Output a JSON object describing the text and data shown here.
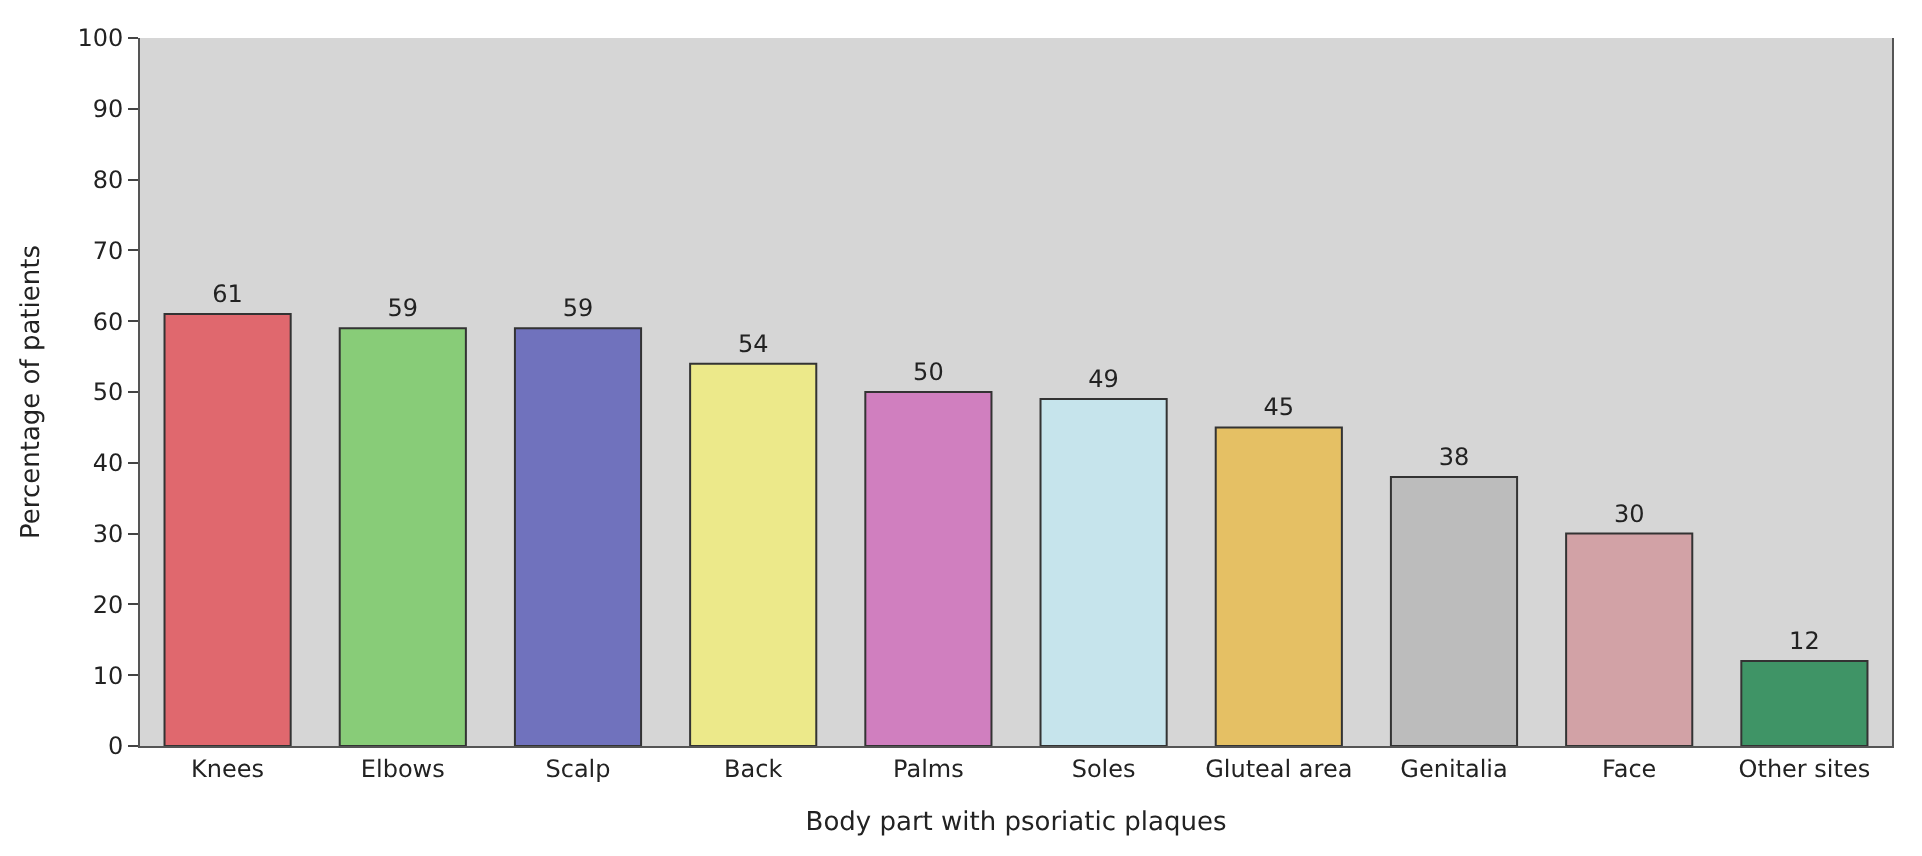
{
  "chart_data": {
    "type": "bar",
    "xlabel": "Body part with psoriatic plaques",
    "ylabel": "Percentage of patients",
    "categories": [
      "Knees",
      "Elbows",
      "Scalp",
      "Back",
      "Palms",
      "Soles",
      "Gluteal area",
      "Genitalia",
      "Face",
      "Other sites"
    ],
    "values": [
      61,
      59,
      59,
      54,
      50,
      49,
      45,
      38,
      30,
      12
    ],
    "colors": [
      "#e0686e",
      "#88cc78",
      "#7072bd",
      "#ece98a",
      "#d07fbf",
      "#c6e4ec",
      "#e5c064",
      "#bcbcbc",
      "#d2a2a6",
      "#3f9466"
    ],
    "ylim": [
      0,
      100
    ],
    "yticks": [
      0,
      10,
      20,
      30,
      40,
      50,
      60,
      70,
      80,
      90,
      100
    ],
    "data_labels": true,
    "grid": false
  }
}
